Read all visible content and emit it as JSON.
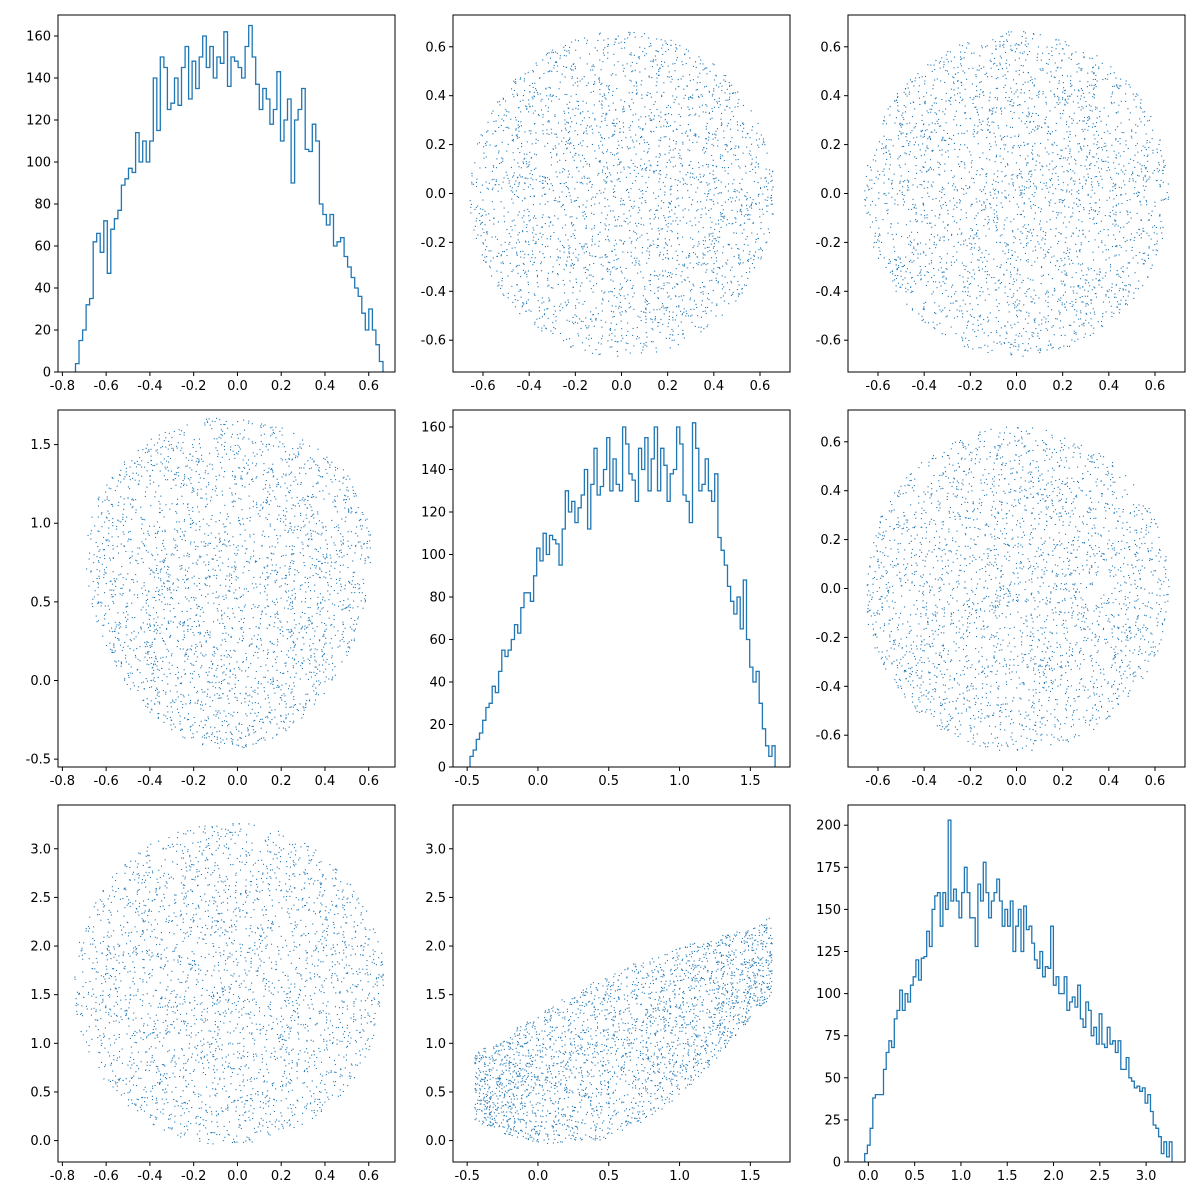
{
  "figure": {
    "layout": "3x3 pair plot",
    "background": "#ffffff"
  },
  "chart_data": [
    {
      "type": "histogram",
      "position": "row1-col1",
      "color": "#1f77b4",
      "xlim": [
        -0.82,
        0.72
      ],
      "ylim": [
        0,
        170
      ],
      "xticks": [
        "-0.8",
        "-0.6",
        "-0.4",
        "-0.2",
        "0.0",
        "0.2",
        "0.4",
        "0.6"
      ],
      "yticks": [
        "0",
        "20",
        "40",
        "60",
        "80",
        "100",
        "120",
        "140",
        "160"
      ],
      "bins_range": [
        -0.74,
        0.665
      ],
      "counts": [
        4,
        15,
        20,
        32,
        35,
        62,
        66,
        57,
        72,
        47,
        68,
        73,
        77,
        89,
        92,
        97,
        95,
        114,
        100,
        110,
        100,
        110,
        140,
        115,
        150,
        145,
        125,
        128,
        140,
        127,
        145,
        155,
        130,
        148,
        135,
        150,
        160,
        145,
        155,
        140,
        150,
        147,
        162,
        136,
        150,
        148,
        145,
        140,
        155,
        165,
        150,
        137,
        125,
        135,
        130,
        118,
        125,
        143,
        110,
        120,
        130,
        90,
        120,
        125,
        135,
        106,
        105,
        118,
        110,
        80,
        75,
        70,
        75,
        60,
        62,
        64,
        55,
        50,
        45,
        40,
        36,
        28,
        20,
        30,
        20,
        13,
        5
      ]
    },
    {
      "type": "scatter",
      "position": "row1-col2",
      "color": "#1f77b4",
      "shape": "disk",
      "n_points": 2800,
      "xlim": [
        -0.73,
        0.73
      ],
      "ylim": [
        -0.73,
        0.73
      ],
      "center": [
        0.0,
        0.0
      ],
      "radius_x": 0.66,
      "radius_y": 0.665,
      "xticks": [
        "-0.6",
        "-0.4",
        "-0.2",
        "0.0",
        "0.2",
        "0.4",
        "0.6"
      ],
      "yticks": [
        "-0.6",
        "-0.4",
        "-0.2",
        "0.0",
        "0.2",
        "0.4",
        "0.6"
      ]
    },
    {
      "type": "scatter",
      "position": "row1-col3",
      "color": "#1f77b4",
      "shape": "disk",
      "n_points": 2800,
      "xlim": [
        -0.73,
        0.73
      ],
      "ylim": [
        -0.73,
        0.73
      ],
      "center": [
        0.0,
        0.0
      ],
      "radius_x": 0.66,
      "radius_y": 0.665,
      "xticks": [
        "-0.6",
        "-0.4",
        "-0.2",
        "0.0",
        "0.2",
        "0.4",
        "0.6"
      ],
      "yticks": [
        "-0.6",
        "-0.4",
        "-0.2",
        "0.0",
        "0.2",
        "0.4",
        "0.6"
      ]
    },
    {
      "type": "scatter",
      "position": "row2-col1",
      "color": "#1f77b4",
      "shape": "rounded-blob",
      "n_points": 2800,
      "xlim": [
        -0.82,
        0.72
      ],
      "ylim": [
        -0.55,
        1.72
      ],
      "center": [
        -0.04,
        0.62
      ],
      "radius_x": 0.71,
      "radius_y": 1.06,
      "xticks": [
        "-0.8",
        "-0.6",
        "-0.4",
        "-0.2",
        "0.0",
        "0.2",
        "0.4",
        "0.6"
      ],
      "yticks": [
        "-0.5",
        "0.0",
        "0.5",
        "1.0",
        "1.5"
      ]
    },
    {
      "type": "histogram",
      "position": "row2-col2",
      "color": "#1f77b4",
      "xlim": [
        -0.6,
        1.78
      ],
      "ylim": [
        0,
        168
      ],
      "xticks": [
        "-0.5",
        "0.0",
        "0.5",
        "1.0",
        "1.5"
      ],
      "yticks": [
        "0",
        "20",
        "40",
        "60",
        "80",
        "100",
        "120",
        "140",
        "160"
      ],
      "bins_range": [
        -0.48,
        1.675
      ],
      "counts": [
        5,
        8,
        13,
        16,
        22,
        28,
        30,
        38,
        35,
        45,
        55,
        52,
        55,
        60,
        67,
        63,
        75,
        82,
        82,
        78,
        90,
        103,
        97,
        110,
        100,
        109,
        107,
        105,
        95,
        112,
        130,
        120,
        125,
        115,
        122,
        128,
        140,
        112,
        133,
        150,
        128,
        132,
        140,
        155,
        130,
        145,
        133,
        130,
        160,
        152,
        138,
        135,
        125,
        150,
        140,
        155,
        130,
        145,
        160,
        130,
        150,
        142,
        125,
        138,
        140,
        160,
        152,
        128,
        125,
        115,
        162,
        150,
        130,
        133,
        145,
        130,
        125,
        138,
        108,
        102,
        95,
        85,
        78,
        72,
        80,
        65,
        88,
        60,
        47,
        40,
        45,
        30,
        18,
        10,
        5,
        10
      ]
    },
    {
      "type": "scatter",
      "position": "row2-col3",
      "color": "#1f77b4",
      "shape": "disk",
      "n_points": 2800,
      "xlim": [
        -0.73,
        0.73
      ],
      "ylim": [
        -0.73,
        0.73
      ],
      "center": [
        0.0,
        0.0
      ],
      "radius_x": 0.66,
      "radius_y": 0.665,
      "xticks": [
        "-0.6",
        "-0.4",
        "-0.2",
        "0.0",
        "0.2",
        "0.4",
        "0.6"
      ],
      "yticks": [
        "-0.6",
        "-0.4",
        "-0.2",
        "0.0",
        "0.2",
        "0.4",
        "0.6"
      ]
    },
    {
      "type": "scatter",
      "position": "row3-col1",
      "color": "#1f77b4",
      "shape": "disk",
      "n_points": 2800,
      "xlim": [
        -0.82,
        0.72
      ],
      "ylim": [
        -0.22,
        3.45
      ],
      "center": [
        -0.04,
        1.62
      ],
      "radius_x": 0.71,
      "radius_y": 1.66,
      "xticks": [
        "-0.8",
        "-0.6",
        "-0.4",
        "-0.2",
        "0.0",
        "0.2",
        "0.4",
        "0.6"
      ],
      "yticks": [
        "0.0",
        "0.5",
        "1.0",
        "1.5",
        "2.0",
        "2.5",
        "3.0"
      ]
    },
    {
      "type": "scatter",
      "position": "row3-col2",
      "color": "#1f77b4",
      "shape": "curved-band",
      "n_points": 2800,
      "xlim": [
        -0.6,
        1.78
      ],
      "ylim": [
        -0.22,
        3.45
      ],
      "xticks": [
        "-0.5",
        "0.0",
        "0.5",
        "1.0",
        "1.5"
      ],
      "yticks": [
        "0.0",
        "0.5",
        "1.0",
        "1.5",
        "2.0",
        "2.5",
        "3.0"
      ]
    },
    {
      "type": "histogram",
      "position": "row3-col3",
      "color": "#1f77b4",
      "xlim": [
        -0.22,
        3.42
      ],
      "ylim": [
        0,
        212
      ],
      "xticks": [
        "0.0",
        "0.5",
        "1.0",
        "1.5",
        "2.0",
        "2.5",
        "3.0"
      ],
      "yticks": [
        "0",
        "25",
        "50",
        "75",
        "100",
        "125",
        "150",
        "175",
        "200"
      ],
      "bins_range": [
        -0.04,
        3.28
      ],
      "counts": [
        5,
        10,
        20,
        38,
        40,
        40,
        40,
        55,
        65,
        72,
        68,
        85,
        90,
        102,
        90,
        100,
        95,
        105,
        110,
        120,
        108,
        121,
        122,
        137,
        128,
        150,
        158,
        160,
        140,
        160,
        150,
        203,
        155,
        162,
        155,
        145,
        160,
        175,
        160,
        145,
        145,
        128,
        165,
        155,
        178,
        160,
        145,
        155,
        160,
        168,
        155,
        140,
        150,
        140,
        155,
        125,
        140,
        150,
        125,
        152,
        138,
        140,
        130,
        120,
        115,
        125,
        110,
        116,
        115,
        140,
        105,
        110,
        100,
        100,
        110,
        90,
        95,
        98,
        92,
        105,
        85,
        80,
        95,
        90,
        75,
        80,
        70,
        88,
        70,
        68,
        80,
        70,
        72,
        65,
        72,
        55,
        55,
        62,
        50,
        48,
        44,
        45,
        42,
        44,
        35,
        40,
        30,
        22,
        20,
        15,
        5,
        12,
        3,
        12
      ]
    }
  ]
}
